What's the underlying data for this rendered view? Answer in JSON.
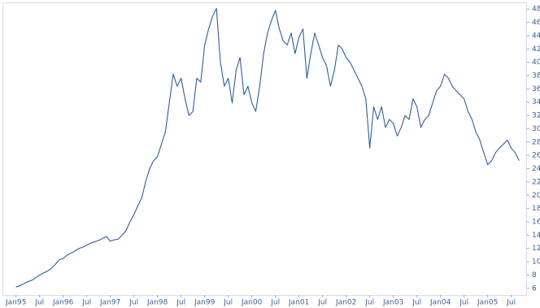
{
  "chart_data": {
    "type": "line",
    "x": [
      "1995-01",
      "1995-02",
      "1995-03",
      "1995-04",
      "1995-05",
      "1995-06",
      "1995-07",
      "1995-08",
      "1995-09",
      "1995-10",
      "1995-11",
      "1995-12",
      "1996-01",
      "1996-02",
      "1996-03",
      "1996-04",
      "1996-05",
      "1996-06",
      "1996-07",
      "1996-08",
      "1996-09",
      "1996-10",
      "1996-11",
      "1996-12",
      "1997-01",
      "1997-02",
      "1997-03",
      "1997-04",
      "1997-05",
      "1997-06",
      "1997-07",
      "1997-08",
      "1997-09",
      "1997-10",
      "1997-11",
      "1997-12",
      "1998-01",
      "1998-02",
      "1998-03",
      "1998-04",
      "1998-05",
      "1998-06",
      "1998-07",
      "1998-08",
      "1998-09",
      "1998-10",
      "1998-11",
      "1998-12",
      "1999-01",
      "1999-02",
      "1999-03",
      "1999-04",
      "1999-05",
      "1999-06",
      "1999-07",
      "1999-08",
      "1999-09",
      "1999-10",
      "1999-11",
      "1999-12",
      "2000-01",
      "2000-02",
      "2000-03",
      "2000-04",
      "2000-05",
      "2000-06",
      "2000-07",
      "2000-08",
      "2000-09",
      "2000-10",
      "2000-11",
      "2000-12",
      "2001-01",
      "2001-02",
      "2001-03",
      "2001-04",
      "2001-05",
      "2001-06",
      "2001-07",
      "2001-08",
      "2001-09",
      "2001-10",
      "2001-11",
      "2001-12",
      "2002-01",
      "2002-02",
      "2002-03",
      "2002-04",
      "2002-05",
      "2002-06",
      "2002-07",
      "2002-08",
      "2002-09",
      "2002-10",
      "2002-11",
      "2002-12",
      "2003-01",
      "2003-02",
      "2003-03",
      "2003-04",
      "2003-05",
      "2003-06",
      "2003-07",
      "2003-08",
      "2003-09",
      "2003-10",
      "2003-11",
      "2003-12",
      "2004-01",
      "2004-02",
      "2004-03",
      "2004-04",
      "2004-05",
      "2004-06",
      "2004-07",
      "2004-08",
      "2004-09",
      "2004-10",
      "2004-11",
      "2004-12",
      "2005-01",
      "2005-02",
      "2005-03",
      "2005-04",
      "2005-05",
      "2005-06",
      "2005-07",
      "2005-08",
      "2005-09"
    ],
    "series": [
      {
        "color": "#2f5d9b",
        "values": [
          6.2,
          6.4,
          6.7,
          7.0,
          7.2,
          7.6,
          8.0,
          8.3,
          8.6,
          9.0,
          9.6,
          10.3,
          10.5,
          11,
          11.3,
          11.6,
          12,
          12.2,
          12.5,
          12.8,
          13,
          13.2,
          13.5,
          13.8,
          13.1,
          13.3,
          13.4,
          14,
          14.7,
          16,
          17.1,
          18.4,
          19.6,
          22.1,
          24,
          25.2,
          25.8,
          27.7,
          29.5,
          33.9,
          38.2,
          36.4,
          37.6,
          34.5,
          32,
          32.6,
          37.6,
          37,
          42.6,
          45,
          46.9,
          48.1,
          40,
          36.4,
          37.6,
          33.9,
          38.8,
          40.7,
          35.1,
          36.4,
          33.9,
          32.6,
          36.4,
          41.3,
          44.4,
          46.3,
          47.8,
          45,
          43.2,
          42.6,
          44.4,
          41.3,
          43.8,
          45,
          37.6,
          41.3,
          44.4,
          42.6,
          40.7,
          39.5,
          36.4,
          38.8,
          42.6,
          42,
          40.7,
          40,
          38.8,
          37.6,
          36.4,
          34.5,
          27.1,
          33.3,
          31.4,
          33.3,
          30.2,
          31.4,
          30.8,
          28.9,
          30.2,
          32,
          31.4,
          34.5,
          33.3,
          30.2,
          31.4,
          32,
          33.9,
          35.7,
          36.4,
          38.2,
          37.6,
          36.4,
          35.7,
          35.1,
          34.5,
          32.6,
          31.4,
          29.5,
          28.3,
          26.4,
          24.6,
          25.2,
          26.4,
          27.1,
          27.7,
          28.3,
          27.1,
          26.4,
          25.2
        ]
      }
    ],
    "xlim": [
      "1994-11",
      "2005-11"
    ],
    "xticks": [
      {
        "value": "1995-01",
        "label": "Jan95"
      },
      {
        "value": "1995-07",
        "label": "Jul"
      },
      {
        "value": "1996-01",
        "label": "Jan96"
      },
      {
        "value": "1996-07",
        "label": "Jul"
      },
      {
        "value": "1997-01",
        "label": "Jan97"
      },
      {
        "value": "1997-07",
        "label": "Jul"
      },
      {
        "value": "1998-01",
        "label": "Jan98"
      },
      {
        "value": "1998-07",
        "label": "Jul"
      },
      {
        "value": "1999-01",
        "label": "Jan99"
      },
      {
        "value": "1999-07",
        "label": "Jul"
      },
      {
        "value": "2000-01",
        "label": "Jan00"
      },
      {
        "value": "2000-07",
        "label": "Jul"
      },
      {
        "value": "2001-01",
        "label": "Jan01"
      },
      {
        "value": "2001-07",
        "label": "Jul"
      },
      {
        "value": "2002-01",
        "label": "Jan02"
      },
      {
        "value": "2002-07",
        "label": "Jul"
      },
      {
        "value": "2003-01",
        "label": "Jan03"
      },
      {
        "value": "2003-07",
        "label": "Jul"
      },
      {
        "value": "2004-01",
        "label": "Jan04"
      },
      {
        "value": "2004-07",
        "label": "Jul"
      },
      {
        "value": "2005-01",
        "label": "Jan05"
      },
      {
        "value": "2005-07",
        "label": "Jul"
      }
    ],
    "ylim": [
      5,
      49
    ],
    "yticks": [
      6,
      8,
      10,
      12,
      14,
      16,
      18,
      20,
      22,
      24,
      26,
      28,
      30,
      32,
      34,
      36,
      38,
      40,
      42,
      44,
      46,
      48
    ],
    "yaxis_side": "right"
  }
}
